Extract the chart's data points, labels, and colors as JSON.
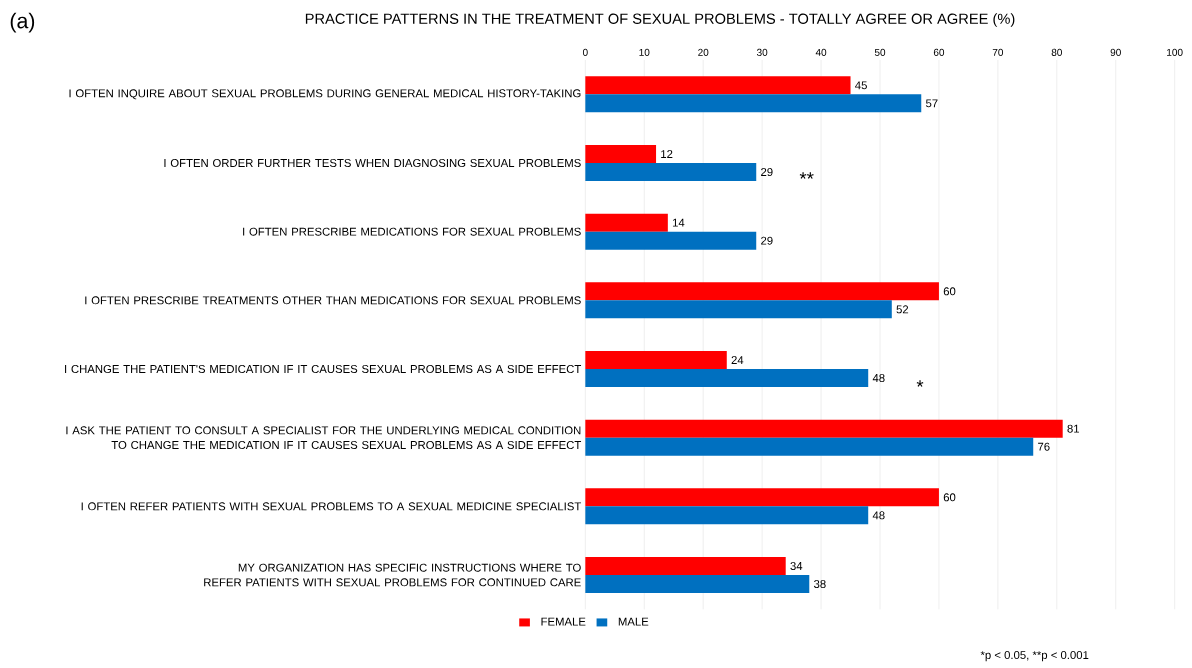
{
  "chart_data": {
    "type": "bar",
    "orientation": "horizontal",
    "title": "PRACTICE PATTERNS IN THE TREATMENT OF SEXUAL PROBLEMS - TOTALLY AGREE OR AGREE (%)",
    "categories": [
      "I OFTEN INQUIRE ABOUT SEXUAL PROBLEMS DURING GENERAL MEDICAL HISTORY-TAKING",
      "I OFTEN ORDER FURTHER TESTS WHEN DIAGNOSING SEXUAL PROBLEMS",
      "I OFTEN PRESCRIBE MEDICATIONS FOR SEXUAL PROBLEMS",
      "I OFTEN PRESCRIBE TREATMENTS OTHER THAN MEDICATIONS FOR SEXUAL PROBLEMS",
      "I CHANGE THE PATIENT'S MEDICATION IF IT CAUSES SEXUAL PROBLEMS AS A SIDE EFFECT",
      "I ASK THE PATIENT TO CONSULT A SPECIALIST FOR THE UNDERLYING MEDICAL CONDITION TO CHANGE THE MEDICATION IF IT CAUSES SEXUAL PROBLEMS AS A SIDE EFFECT",
      "I OFTEN REFER PATIENTS WITH SEXUAL PROBLEMS TO A SEXUAL MEDICINE SPECIALIST",
      "MY ORGANIZATION HAS SPECIFIC INSTRUCTIONS WHERE TO REFER PATIENTS WITH SEXUAL PROBLEMS FOR CONTINUED CARE"
    ],
    "series": [
      {
        "name": "FEMALE",
        "color": "#ff0000",
        "values": [
          45,
          12,
          14,
          60,
          24,
          81,
          60,
          34
        ]
      },
      {
        "name": "MALE",
        "color": "#0070c0",
        "values": [
          57,
          29,
          29,
          52,
          48,
          76,
          48,
          38
        ]
      }
    ],
    "xlim": [
      0,
      100
    ],
    "xticks": [
      0,
      10,
      20,
      30,
      40,
      50,
      60,
      70,
      80,
      90,
      100
    ],
    "grid": "x",
    "legend": "bottom",
    "data_labels": true,
    "annotations": [
      "(a)",
      "**",
      "*",
      "*p < 0.05, **p < 0.001"
    ]
  }
}
